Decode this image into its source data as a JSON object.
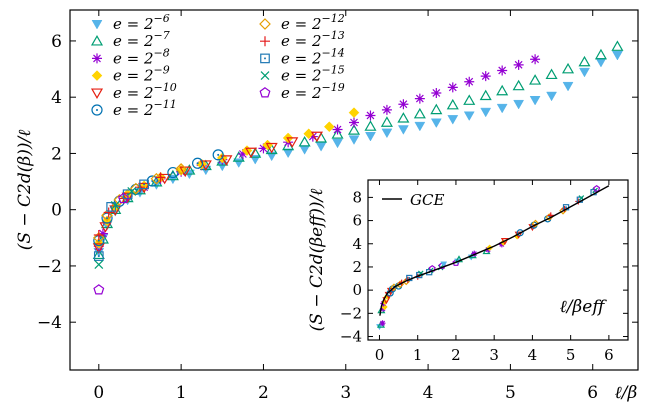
{
  "chart_data": [
    {
      "type": "scatter",
      "title": "",
      "xlabel": "ℓ/β",
      "ylabel": "(S − C2d(β))/ℓ",
      "xlim": [
        -0.35,
        6.55
      ],
      "ylim": [
        -5.7,
        7.1
      ],
      "xticks": [
        "0",
        "1",
        "2",
        "3",
        "4",
        "5",
        "6"
      ],
      "yticks": [
        "−4",
        "−2",
        "0",
        "2",
        "4",
        "6"
      ],
      "grid": false,
      "legend": {
        "placement": "top-left",
        "columns": 2,
        "entries": [
          {
            "label": "e = 2−6",
            "base": "e = 2",
            "exp": "−6",
            "marker": "triangle-down-filled",
            "color": "#56b4e9"
          },
          {
            "label": "e = 2−7",
            "base": "e = 2",
            "exp": "−7",
            "marker": "triangle-up-open",
            "color": "#009e73"
          },
          {
            "label": "e = 2−8",
            "base": "e = 2",
            "exp": "−8",
            "marker": "asterisk",
            "color": "#9400d3"
          },
          {
            "label": "e = 2−9",
            "base": "e = 2",
            "exp": "−9",
            "marker": "diamond-filled",
            "color": "#ffd300"
          },
          {
            "label": "e = 2−10",
            "base": "e = 2",
            "exp": "−10",
            "marker": "triangle-down-open",
            "color": "#e51e10"
          },
          {
            "label": "e = 2−11",
            "base": "e = 2",
            "exp": "−11",
            "marker": "circle-dot",
            "color": "#0072b2"
          },
          {
            "label": "e = 2−12",
            "base": "e = 2",
            "exp": "−12",
            "marker": "diamond-open",
            "color": "#e69f00"
          },
          {
            "label": "e = 2−13",
            "base": "e = 2",
            "exp": "−13",
            "marker": "plus",
            "color": "#e41a1c"
          },
          {
            "label": "e = 2−14",
            "base": "e = 2",
            "exp": "−14",
            "marker": "square-dot",
            "color": "#1f78b4"
          },
          {
            "label": "e = 2−15",
            "base": "e = 2",
            "exp": "−15",
            "marker": "cross",
            "color": "#009e73"
          },
          {
            "label": "e = 2−19",
            "base": "e = 2",
            "exp": "−19",
            "marker": "pentagon-open",
            "color": "#9400d3"
          }
        ]
      },
      "series": [
        {
          "name": "e = 2−6",
          "x": [
            0,
            0.05,
            0.1,
            0.2,
            0.35,
            0.5,
            0.7,
            0.9,
            1.1,
            1.3,
            1.5,
            1.7,
            1.9,
            2.1,
            2.3,
            2.5,
            2.7,
            2.9,
            3.1,
            3.3,
            3.5,
            3.7,
            3.9,
            4.1,
            4.3,
            4.5,
            4.7,
            4.9,
            5.1,
            5.3,
            5.5,
            5.7,
            5.9,
            6.1,
            6.3
          ],
          "y": [
            -1.5,
            -1.0,
            -0.55,
            -0.05,
            0.35,
            0.62,
            0.9,
            1.1,
            1.28,
            1.42,
            1.56,
            1.68,
            1.8,
            1.92,
            2.03,
            2.15,
            2.26,
            2.38,
            2.5,
            2.62,
            2.74,
            2.86,
            2.98,
            3.1,
            3.22,
            3.35,
            3.48,
            3.62,
            3.76,
            3.9,
            4.05,
            4.4,
            4.9,
            5.25,
            5.5
          ]
        },
        {
          "name": "e = 2−7",
          "x": [
            0,
            0.05,
            0.1,
            0.2,
            0.35,
            0.5,
            0.7,
            0.9,
            1.1,
            1.3,
            1.5,
            1.7,
            1.9,
            2.1,
            2.3,
            2.5,
            2.7,
            2.9,
            3.1,
            3.3,
            3.5,
            3.7,
            3.9,
            4.1,
            4.3,
            4.5,
            4.7,
            4.9,
            5.1,
            5.3,
            5.5,
            5.7,
            5.9,
            6.1,
            6.3
          ],
          "y": [
            -1.6,
            -1.05,
            -0.5,
            0.0,
            0.42,
            0.7,
            0.98,
            1.2,
            1.4,
            1.56,
            1.72,
            1.86,
            2.0,
            2.13,
            2.27,
            2.4,
            2.54,
            2.68,
            2.82,
            2.96,
            3.1,
            3.25,
            3.4,
            3.55,
            3.72,
            3.88,
            4.05,
            4.22,
            4.4,
            4.6,
            4.8,
            5.0,
            5.25,
            5.5,
            5.8
          ]
        },
        {
          "name": "e = 2−8",
          "x": [
            0,
            0.05,
            0.1,
            0.2,
            0.35,
            0.55,
            0.75,
            1.0,
            1.25,
            1.5,
            1.75,
            2.0,
            2.3,
            2.6,
            2.9,
            3.1,
            3.3,
            3.5,
            3.7,
            3.9,
            4.1,
            4.3,
            4.5,
            4.7,
            4.9,
            5.1,
            5.3
          ],
          "y": [
            -1.3,
            -0.85,
            -0.4,
            0.1,
            0.5,
            0.8,
            1.1,
            1.35,
            1.58,
            1.78,
            1.98,
            2.18,
            2.4,
            2.6,
            2.85,
            3.1,
            3.35,
            3.55,
            3.75,
            3.95,
            4.15,
            4.35,
            4.55,
            4.75,
            4.95,
            5.15,
            5.35
          ]
        },
        {
          "name": "e = 2−9",
          "x": [
            0,
            0.1,
            0.2,
            0.35,
            0.55,
            0.75,
            1.0,
            1.25,
            1.5,
            1.8,
            2.05,
            2.3,
            2.55,
            2.8,
            3.1
          ],
          "y": [
            -1.2,
            -0.4,
            0.1,
            0.55,
            0.85,
            1.15,
            1.4,
            1.62,
            1.84,
            2.1,
            2.3,
            2.55,
            2.7,
            2.95,
            3.45
          ]
        },
        {
          "name": "e = 2−10",
          "x": [
            0,
            0.08,
            0.2,
            0.35,
            0.55,
            0.8,
            1.05,
            1.3,
            1.55,
            1.85,
            2.1,
            2.35,
            2.65
          ],
          "y": [
            -1.35,
            -0.6,
            0.0,
            0.45,
            0.8,
            1.12,
            1.38,
            1.6,
            1.78,
            2.05,
            2.22,
            2.42,
            2.62
          ]
        },
        {
          "name": "e = 2−11",
          "x": [
            0,
            0.1,
            0.25,
            0.45,
            0.65,
            0.9,
            1.2,
            1.45
          ],
          "y": [
            -1.1,
            -0.3,
            0.3,
            0.72,
            1.02,
            1.32,
            1.65,
            1.95
          ]
        },
        {
          "name": "e = 2−12",
          "x": [
            0,
            0.1,
            0.25,
            0.45,
            0.7,
            1.0
          ],
          "y": [
            -1.0,
            -0.2,
            0.35,
            0.75,
            1.1,
            1.45
          ]
        },
        {
          "name": "e = 2−13",
          "x": [
            0,
            0.12,
            0.3,
            0.5,
            0.75
          ],
          "y": [
            -0.9,
            -0.1,
            0.4,
            0.8,
            1.15
          ]
        },
        {
          "name": "e = 2−14",
          "x": [
            0,
            0.15,
            0.35,
            0.55
          ],
          "y": [
            -1.65,
            0.1,
            0.55,
            0.9
          ]
        },
        {
          "name": "e = 2−15",
          "x": [
            0,
            0.2,
            0.4
          ],
          "y": [
            -1.95,
            0.15,
            0.65
          ]
        },
        {
          "name": "e = 2−19",
          "x": [
            0,
            0.3
          ],
          "y": [
            -2.85,
            0.4
          ]
        }
      ]
    },
    {
      "type": "scatter",
      "title": "",
      "xlabel": "ℓ/βeff",
      "ylabel": "(S − C2d(βeff))/ℓ",
      "xlim": [
        -0.3,
        6.5
      ],
      "ylim": [
        -4.3,
        9.5
      ],
      "xticks": [
        "0",
        "1",
        "2",
        "3",
        "4",
        "5",
        "6"
      ],
      "yticks": [
        "−4",
        "−2",
        "0",
        "2",
        "4",
        "6",
        "8"
      ],
      "grid": false,
      "legend": {
        "placement": "top-left",
        "entries": [
          {
            "label": "GCE",
            "marker": "line",
            "color": "#000000"
          }
        ]
      },
      "curve_gce": {
        "x": [
          0.01,
          0.05,
          0.1,
          0.2,
          0.4,
          0.7,
          1.0,
          1.5,
          2.0,
          2.5,
          3.0,
          3.5,
          4.0,
          4.5,
          5.0,
          5.5,
          6.0
        ],
        "y": [
          -2.2,
          -1.4,
          -0.9,
          -0.3,
          0.3,
          0.8,
          1.2,
          1.8,
          2.4,
          3.1,
          3.8,
          4.6,
          5.5,
          6.3,
          7.2,
          8.1,
          9.0
        ]
      },
      "series_points": {
        "x": [
          0,
          0.05,
          0.1,
          0.2,
          0.3,
          0.5,
          0.7,
          1.0,
          1.3,
          1.6,
          2.0,
          2.4,
          2.8,
          3.2,
          3.6,
          4.0,
          4.4,
          4.8,
          5.2,
          5.6
        ],
        "y": [
          -3.0,
          -1.6,
          -1.0,
          -0.4,
          0.1,
          0.5,
          0.9,
          1.3,
          1.7,
          2.1,
          2.5,
          3.0,
          3.5,
          4.1,
          4.8,
          5.6,
          6.3,
          7.0,
          7.8,
          8.6
        ]
      }
    }
  ]
}
